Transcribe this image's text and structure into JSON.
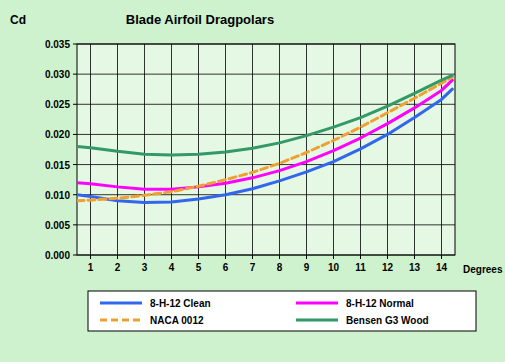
{
  "chart_data": {
    "type": "line",
    "title": "Blade Airfoil Dragpolars",
    "y_label": "Cd",
    "x_label": "Degrees",
    "x": [
      0.5,
      1,
      2,
      3,
      4,
      5,
      6,
      7,
      8,
      9,
      10,
      11,
      12,
      13,
      14,
      14.4
    ],
    "xlim": [
      0.5,
      14.5
    ],
    "xticks": [
      1,
      2,
      3,
      4,
      5,
      6,
      7,
      8,
      9,
      10,
      11,
      12,
      13,
      14
    ],
    "ylim": [
      0,
      0.035
    ],
    "yticks": [
      {
        "value": 0,
        "label": "0.000"
      },
      0.005,
      {
        "value": 0.01,
        "label": "0.010"
      },
      0.015,
      {
        "value": 0.02,
        "label": "0.020"
      },
      0.025,
      {
        "value": 0.03,
        "label": "0.030"
      },
      0.035
    ],
    "grid": true,
    "legend": "bottom",
    "series": [
      {
        "name": "8-H-12 Clean",
        "color": "#3366ee",
        "line_style": "solid",
        "values": [
          0.01,
          0.0097,
          0.009,
          0.0087,
          0.0088,
          0.0093,
          0.01,
          0.011,
          0.0123,
          0.0138,
          0.0155,
          0.0176,
          0.02,
          0.0228,
          0.0258,
          0.0275
        ]
      },
      {
        "name": "8-H-12 Normal",
        "color": "#ff00ff",
        "line_style": "solid",
        "values": [
          0.012,
          0.0118,
          0.0113,
          0.0109,
          0.0109,
          0.0113,
          0.0119,
          0.0128,
          0.014,
          0.0155,
          0.0173,
          0.0194,
          0.0218,
          0.0244,
          0.0273,
          0.029
        ]
      },
      {
        "name": "NACA 0012",
        "color": "#f0a030",
        "line_style": "dashed",
        "values": [
          0.009,
          0.0091,
          0.0094,
          0.0099,
          0.0105,
          0.0114,
          0.0125,
          0.0137,
          0.0152,
          0.017,
          0.019,
          0.0212,
          0.0236,
          0.026,
          0.0285,
          0.0295
        ]
      },
      {
        "name": "Bensen G3 Wood",
        "color": "#339966",
        "line_style": "solid",
        "values": [
          0.018,
          0.0178,
          0.0172,
          0.0167,
          0.0166,
          0.0167,
          0.0171,
          0.0177,
          0.0186,
          0.0198,
          0.0212,
          0.0228,
          0.0247,
          0.0268,
          0.029,
          0.0298
        ]
      }
    ]
  }
}
